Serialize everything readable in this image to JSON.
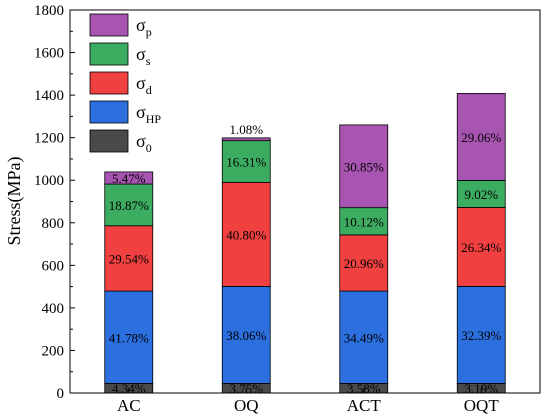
{
  "chart_data": {
    "type": "bar",
    "stacked": true,
    "ylabel": "Stress(MPa)",
    "ylim": [
      0,
      1800
    ],
    "yticks": [
      0,
      200,
      400,
      600,
      800,
      1000,
      1200,
      1400,
      1600,
      1800
    ],
    "categories": [
      "AC",
      "OQ",
      "ACT",
      "OQT"
    ],
    "grid": false,
    "legend_position": "top-left",
    "series": [
      {
        "id": "s0",
        "name": "σ",
        "sub": "0",
        "color": "#4a4a4a",
        "values": [
          45,
          45,
          45,
          45
        ],
        "labels": [
          "4.34%",
          "3.75%",
          "3.58%",
          "3.19%"
        ]
      },
      {
        "id": "shp",
        "name": "σ",
        "sub": "HP",
        "color": "#2c70e0",
        "values": [
          434,
          456,
          434,
          456
        ],
        "labels": [
          "41.78%",
          "38.06%",
          "34.49%",
          "32.39%"
        ]
      },
      {
        "id": "sd",
        "name": "σ",
        "sub": "d",
        "color": "#f04040",
        "values": [
          307,
          489,
          264,
          371
        ],
        "labels": [
          "29.54%",
          "40.80%",
          "20.96%",
          "26.34%"
        ]
      },
      {
        "id": "ss",
        "name": "σ",
        "sub": "s",
        "color": "#3cac60",
        "values": [
          196,
          196,
          128,
          127
        ],
        "labels": [
          "18.87%",
          "16.31%",
          "10.12%",
          "9.02%"
        ]
      },
      {
        "id": "sp",
        "name": "σ",
        "sub": "p",
        "color": "#a855b2",
        "values": [
          57,
          13,
          389,
          409
        ],
        "labels": [
          "5.47%",
          "1.08%",
          "30.85%",
          "29.06%"
        ]
      }
    ]
  }
}
